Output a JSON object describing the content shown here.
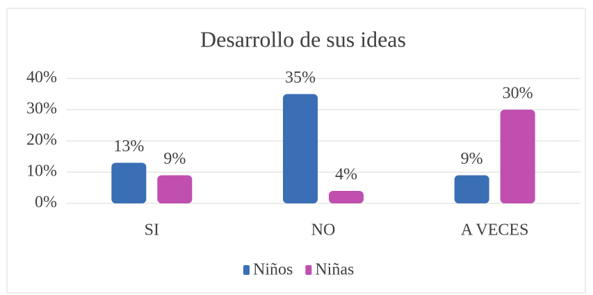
{
  "chart_data": {
    "type": "bar",
    "title": "Desarrollo de sus ideas",
    "categories": [
      "SI",
      "NO",
      "A VECES"
    ],
    "series": [
      {
        "name": "Niños",
        "color": "#3a6fb5",
        "values": [
          13,
          35,
          9
        ],
        "value_labels": [
          "13%",
          "35%",
          "9%"
        ]
      },
      {
        "name": "Niñas",
        "color": "#c04fb0",
        "values": [
          9,
          4,
          30
        ],
        "value_labels": [
          "9%",
          "4%",
          "30%"
        ]
      }
    ],
    "ylim": [
      0,
      40
    ],
    "yticks": [
      {
        "value": 0,
        "label": "0%"
      },
      {
        "value": 10,
        "label": "10%"
      },
      {
        "value": 20,
        "label": "20%"
      },
      {
        "value": 30,
        "label": "30%"
      },
      {
        "value": 40,
        "label": "40%"
      }
    ],
    "grid": true,
    "legend": "bottom"
  }
}
